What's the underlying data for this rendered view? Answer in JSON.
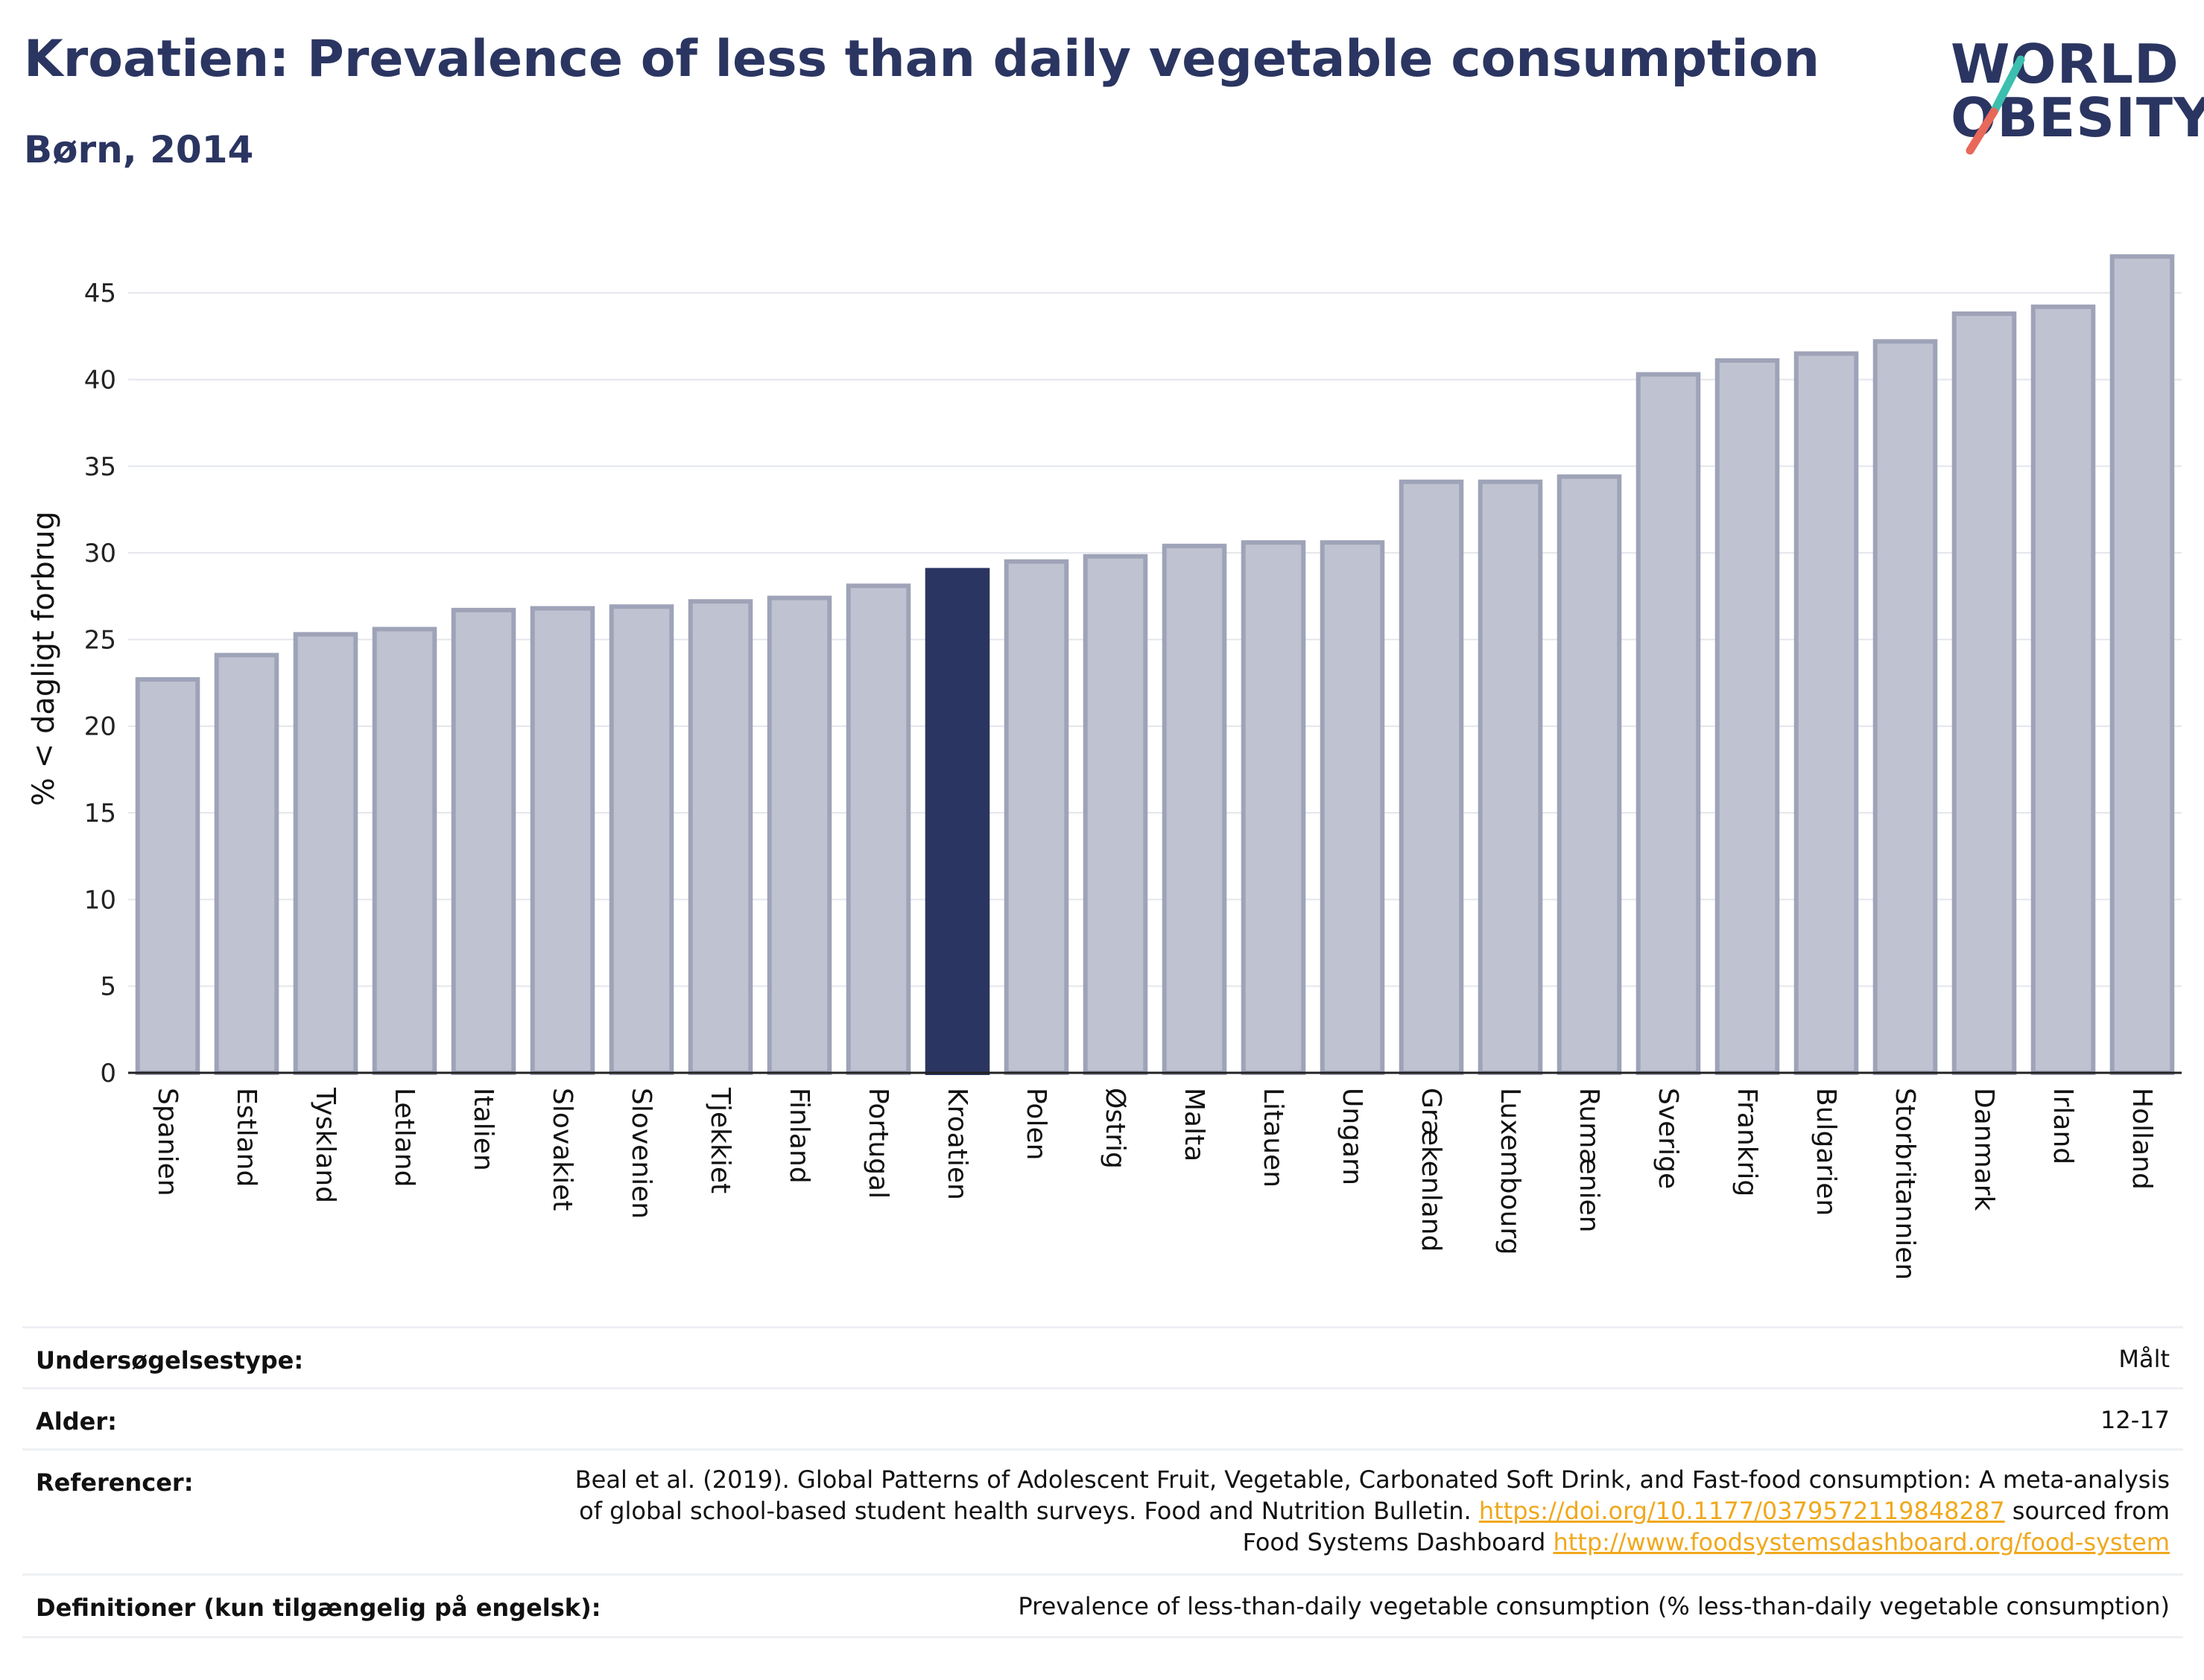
{
  "header": {
    "title": "Kroatien: Prevalence of less than daily vegetable consumption",
    "subtitle": "Børn, 2014"
  },
  "logo": {
    "line1": "WORLD",
    "line2": "OBESITY",
    "colors": {
      "text": "#2b3561",
      "accent_teal": "#3cbfae",
      "accent_coral": "#e8685a"
    }
  },
  "colors": {
    "bar_default": "#bfc2d0",
    "bar_default_stroke": "#9ea3b8",
    "bar_highlight": "#2b3561",
    "axis": "#222222",
    "grid": "#e4e6ec"
  },
  "chart_data": {
    "type": "bar",
    "title": "",
    "xlabel": "",
    "ylabel": "% < dagligt forbrug",
    "ylim": [
      0,
      47.8
    ],
    "yticks": [
      0,
      5,
      10,
      15,
      20,
      25,
      30,
      35,
      40,
      45
    ],
    "grid": true,
    "highlight": "Kroatien",
    "categories": [
      "Spanien",
      "Estland",
      "Tyskland",
      "Letland",
      "Italien",
      "Slovakiet",
      "Slovenien",
      "Tjekkiet",
      "Finland",
      "Portugal",
      "Kroatien",
      "Polen",
      "Østrig",
      "Malta",
      "Litauen",
      "Ungarn",
      "Grækenland",
      "Luxembourg",
      "Rumænien",
      "Sverige",
      "Frankrig",
      "Bulgarien",
      "Storbritannien",
      "Danmark",
      "Irland",
      "Holland"
    ],
    "values": [
      22.7,
      24.1,
      25.3,
      25.6,
      26.7,
      26.8,
      26.9,
      27.2,
      27.4,
      28.1,
      29.0,
      29.5,
      29.8,
      30.4,
      30.6,
      30.6,
      34.1,
      34.1,
      34.4,
      40.3,
      41.1,
      41.5,
      42.2,
      43.8,
      44.2,
      47.1
    ]
  },
  "info_table": {
    "rows": [
      {
        "label": "Undersøgelsestype:",
        "value": "Målt"
      },
      {
        "label": "Alder:",
        "value": "12-17"
      },
      {
        "label": "Referencer:",
        "value_part1": "Beal et al. (2019). Global Patterns of Adolescent Fruit, Vegetable, Carbonated Soft Drink, and Fast-food consumption: A meta-analysis",
        "value_part2": "of global school-based student health surveys. Food and Nutrition Bulletin.",
        "link1": "https://doi.org/10.1177/0379572119848287",
        "value_part3": "sourced from",
        "value_part4": "Food Systems Dashboard",
        "link2": "http://www.foodsystemsdashboard.org/food-system"
      },
      {
        "label": "Definitioner (kun tilgængelig på engelsk):",
        "value": "Prevalence of less-than-daily vegetable consumption (% less-than-daily vegetable consumption)"
      }
    ]
  }
}
